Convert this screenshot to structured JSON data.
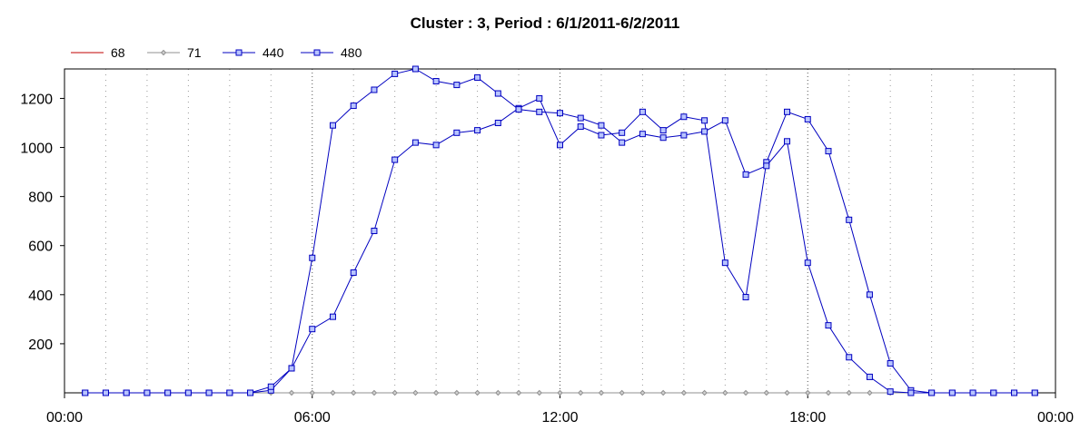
{
  "chart_data": {
    "type": "line",
    "title": "Cluster : 3, Period : 6/1/2011-6/2/2011",
    "xlabel": "",
    "ylabel": "",
    "x_unit": "hours",
    "xlim": [
      0,
      24
    ],
    "ylim": [
      0,
      1320
    ],
    "x_ticks": [
      {
        "value": 0,
        "label": "00:00"
      },
      {
        "value": 6,
        "label": "06:00"
      },
      {
        "value": 12,
        "label": "12:00"
      },
      {
        "value": 18,
        "label": "18:00"
      },
      {
        "value": 24,
        "label": "00:00"
      }
    ],
    "y_ticks": [
      200,
      400,
      600,
      800,
      1000,
      1200
    ],
    "grid": "dotted vertical lines every hour",
    "legend_position": "top-left",
    "x": [
      0.5,
      1,
      1.5,
      2,
      2.5,
      3,
      3.5,
      4,
      4.5,
      5,
      5.5,
      6,
      6.5,
      7,
      7.5,
      8,
      8.5,
      9,
      9.5,
      10,
      10.5,
      11,
      11.5,
      12,
      12.5,
      13,
      13.5,
      14,
      14.5,
      15,
      15.5,
      16,
      16.5,
      17,
      17.5,
      18,
      18.5,
      19,
      19.5,
      20,
      20.5,
      21,
      21.5,
      22,
      22.5,
      23,
      23.5
    ],
    "series": [
      {
        "name": "68",
        "color": "#c00000",
        "marker": "none",
        "values": [
          0,
          0,
          0,
          0,
          0,
          0,
          0,
          0,
          0,
          0,
          0,
          0,
          0,
          0,
          0,
          0,
          0,
          0,
          0,
          0,
          0,
          0,
          0,
          0,
          0,
          0,
          0,
          0,
          0,
          0,
          0,
          0,
          0,
          0,
          0,
          0,
          0,
          0,
          0,
          0,
          0,
          0,
          0,
          0,
          0,
          0,
          0
        ]
      },
      {
        "name": "71",
        "color": "#909090",
        "marker": "diamond",
        "values": [
          0,
          0,
          0,
          0,
          0,
          0,
          0,
          0,
          0,
          0,
          0,
          0,
          0,
          0,
          0,
          0,
          0,
          0,
          0,
          0,
          0,
          0,
          0,
          0,
          0,
          0,
          0,
          0,
          0,
          0,
          0,
          0,
          0,
          0,
          0,
          0,
          0,
          0,
          0,
          0,
          0,
          0,
          0,
          0,
          0,
          0,
          0
        ]
      },
      {
        "name": "440",
        "color": "#0000c0",
        "marker": "square",
        "values": [
          0,
          0,
          0,
          0,
          0,
          0,
          0,
          0,
          0,
          10,
          100,
          260,
          310,
          490,
          660,
          950,
          1020,
          1010,
          1060,
          1070,
          1100,
          1160,
          1200,
          1010,
          1085,
          1050,
          1060,
          1145,
          1070,
          1125,
          1110,
          530,
          390,
          940,
          1145,
          1115,
          985,
          705,
          400,
          120,
          10,
          0,
          0,
          0,
          0,
          0,
          0
        ]
      },
      {
        "name": "480",
        "color": "#0000c0",
        "marker": "square",
        "values": [
          0,
          0,
          0,
          0,
          0,
          0,
          0,
          0,
          0,
          25,
          100,
          550,
          1090,
          1170,
          1235,
          1300,
          1320,
          1270,
          1255,
          1285,
          1220,
          1155,
          1145,
          1140,
          1120,
          1090,
          1020,
          1055,
          1040,
          1050,
          1065,
          1110,
          890,
          925,
          1025,
          530,
          275,
          145,
          65,
          5,
          0,
          0,
          0,
          0,
          0,
          0,
          0
        ]
      }
    ]
  }
}
